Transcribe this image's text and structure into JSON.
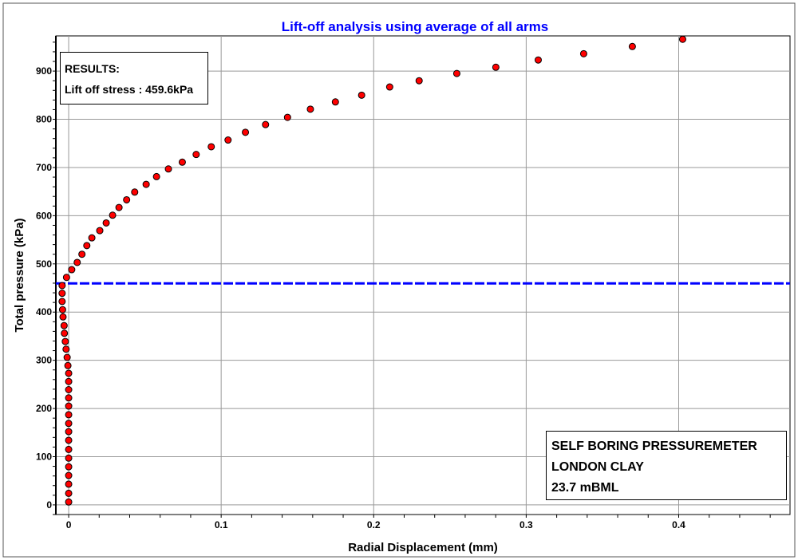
{
  "chart_data": {
    "type": "scatter",
    "title": "Lift-off analysis using average of all arms",
    "xlabel": "Radial Displacement (mm)",
    "ylabel": "Total pressure (kPa)",
    "xlim": [
      -0.0084,
      0.473
    ],
    "ylim": [
      -20,
      973
    ],
    "xticks": [
      "0",
      "0.1",
      "0.2",
      "0.3",
      "0.4"
    ],
    "xtick_values": [
      0,
      0.1,
      0.2,
      0.3,
      0.4
    ],
    "yticks": [
      "0",
      "100",
      "200",
      "300",
      "400",
      "500",
      "600",
      "700",
      "800",
      "900"
    ],
    "ytick_values": [
      0,
      100,
      200,
      300,
      400,
      500,
      600,
      700,
      800,
      900
    ],
    "grid": true,
    "marker_color": "#ff0000",
    "title_color": "#0000ff",
    "liftoff_line": {
      "y": 459.6,
      "color": "#0000ff",
      "style": "dashed"
    },
    "points": [
      [
        0,
        6
      ],
      [
        0,
        24
      ],
      [
        0,
        43
      ],
      [
        0,
        61
      ],
      [
        0,
        79
      ],
      [
        0,
        97
      ],
      [
        0,
        115
      ],
      [
        0,
        134
      ],
      [
        0,
        152
      ],
      [
        0,
        169
      ],
      [
        0,
        187
      ],
      [
        0,
        205
      ],
      [
        0,
        222
      ],
      [
        0,
        239
      ],
      [
        0,
        256
      ],
      [
        0,
        273
      ],
      [
        -0.0005,
        289
      ],
      [
        -0.001,
        306
      ],
      [
        -0.0017,
        323
      ],
      [
        -0.0022,
        339
      ],
      [
        -0.0028,
        356
      ],
      [
        -0.003,
        372
      ],
      [
        -0.0037,
        390
      ],
      [
        -0.004,
        405
      ],
      [
        -0.0043,
        422
      ],
      [
        -0.0043,
        439
      ],
      [
        -0.0043,
        455
      ],
      [
        -0.0014,
        472
      ],
      [
        0.002,
        488
      ],
      [
        0.0056,
        503
      ],
      [
        0.0087,
        520
      ],
      [
        0.0119,
        538
      ],
      [
        0.0152,
        554
      ],
      [
        0.0204,
        569
      ],
      [
        0.0246,
        585
      ],
      [
        0.0288,
        601
      ],
      [
        0.033,
        617
      ],
      [
        0.038,
        633
      ],
      [
        0.0433,
        649
      ],
      [
        0.0508,
        665
      ],
      [
        0.0576,
        681
      ],
      [
        0.0654,
        697
      ],
      [
        0.0745,
        711
      ],
      [
        0.0836,
        727
      ],
      [
        0.0935,
        743
      ],
      [
        0.1045,
        757
      ],
      [
        0.1159,
        773
      ],
      [
        0.1291,
        789
      ],
      [
        0.1435,
        804
      ],
      [
        0.1585,
        821
      ],
      [
        0.1749,
        836
      ],
      [
        0.1921,
        850
      ],
      [
        0.2105,
        867
      ],
      [
        0.2298,
        880
      ],
      [
        0.2545,
        895
      ],
      [
        0.2801,
        908
      ],
      [
        0.3079,
        923
      ],
      [
        0.3377,
        936
      ],
      [
        0.3696,
        951
      ],
      [
        0.4026,
        966
      ]
    ]
  },
  "results_box": {
    "heading": "RESULTS:",
    "line": "Lift off stress : 459.6kPa"
  },
  "info_box": {
    "line1": "SELF BORING PRESSUREMETER",
    "line2": "LONDON CLAY",
    "line3": "23.7 mBML"
  }
}
